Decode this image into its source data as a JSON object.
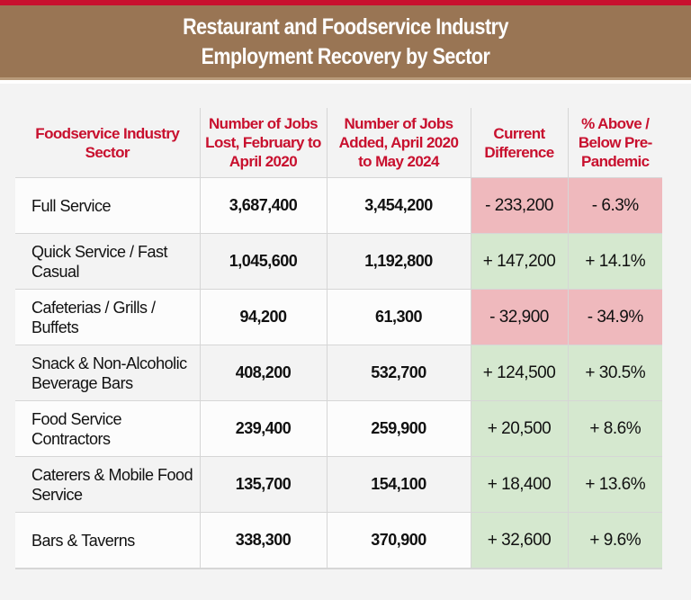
{
  "title_line1": "Restaurant and Foodservice Industry",
  "title_line2": "Employment Recovery by Sector",
  "colors": {
    "accent_red": "#c8102e",
    "banner_brown": "#997554",
    "negative_fill": "#efb9bd",
    "positive_fill": "#d5e8cf"
  },
  "chart_data": {
    "type": "table",
    "columns": [
      "Foodservice Industry Sector",
      "Number of Jobs Lost, February to April 2020",
      "Number of Jobs Added, April 2020 to May 2024",
      "Current Difference",
      "% Above / Below Pre-Pandemic"
    ],
    "rows": [
      {
        "sector": "Full Service",
        "lost": "3,687,400",
        "added": "3,454,200",
        "difference": "- 233,200",
        "percent": "- 6.3%",
        "status": "neg"
      },
      {
        "sector": "Quick Service / Fast Casual",
        "lost": "1,045,600",
        "added": "1,192,800",
        "difference": "+ 147,200",
        "percent": "+ 14.1%",
        "status": "pos"
      },
      {
        "sector": "Cafeterias / Grills / Buffets",
        "lost": "94,200",
        "added": "61,300",
        "difference": "- 32,900",
        "percent": "- 34.9%",
        "status": "neg"
      },
      {
        "sector": "Snack & Non-Alcoholic Beverage Bars",
        "lost": "408,200",
        "added": "532,700",
        "difference": "+ 124,500",
        "percent": "+ 30.5%",
        "status": "pos"
      },
      {
        "sector": "Food Service Contractors",
        "lost": "239,400",
        "added": "259,900",
        "difference": "+ 20,500",
        "percent": "+ 8.6%",
        "status": "pos"
      },
      {
        "sector": "Caterers & Mobile Food Service",
        "lost": "135,700",
        "added": "154,100",
        "difference": "+ 18,400",
        "percent": "+ 13.6%",
        "status": "pos"
      },
      {
        "sector": "Bars & Taverns",
        "lost": "338,300",
        "added": "370,900",
        "difference": "+ 32,600",
        "percent": "+ 9.6%",
        "status": "pos"
      }
    ]
  }
}
